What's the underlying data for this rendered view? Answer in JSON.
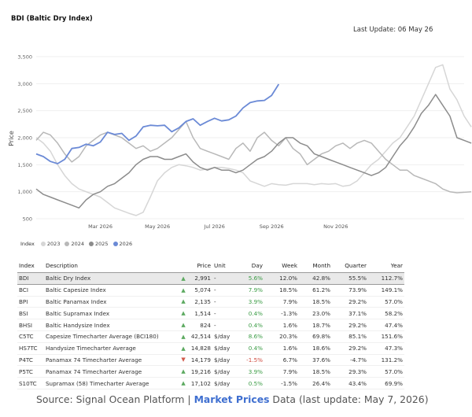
{
  "header": {
    "title": "BDI (Baltic Dry Index)",
    "last_update": "Last Update: 06 May 26"
  },
  "chart_data": {
    "type": "line",
    "ylabel": "Price",
    "ylim": [
      500,
      3500
    ],
    "y_ticks": [
      "500",
      "1,000",
      "1,500",
      "2,000",
      "2,500",
      "3,000",
      "3,500"
    ],
    "x_ticks": [
      "Mar 2026",
      "May 2026",
      "Jul 2026",
      "Sep 2026",
      "Nov 2026"
    ],
    "grid": true,
    "legend": {
      "title": "Index",
      "position": "bottom-left"
    },
    "series": [
      {
        "name": "2023",
        "color": "#d6d6d6",
        "values": [
          2000,
          1900,
          1750,
          1500,
          1300,
          1150,
          1050,
          1000,
          950,
          900,
          800,
          700,
          650,
          600,
          560,
          620,
          900,
          1200,
          1350,
          1450,
          1500,
          1480,
          1450,
          1400,
          1420,
          1450,
          1450,
          1430,
          1400,
          1350,
          1200,
          1150,
          1100,
          1150,
          1130,
          1120,
          1150,
          1150,
          1150,
          1130,
          1150,
          1140,
          1150,
          1100,
          1120,
          1200,
          1350,
          1500,
          1600,
          1750,
          1900,
          2000,
          2200,
          2400,
          2700,
          3000,
          3300,
          3350,
          2900,
          2700,
          2400,
          2200
        ]
      },
      {
        "name": "2024",
        "color": "#b8b8b8",
        "values": [
          1950,
          2100,
          2050,
          1900,
          1700,
          1550,
          1650,
          1850,
          1950,
          2050,
          2100,
          2050,
          2000,
          1900,
          1800,
          1850,
          1750,
          1800,
          1900,
          2000,
          2150,
          2300,
          2000,
          1800,
          1750,
          1700,
          1650,
          1600,
          1800,
          1900,
          1750,
          2000,
          2100,
          1950,
          1850,
          2000,
          1800,
          1700,
          1500,
          1600,
          1700,
          1750,
          1850,
          1900,
          1800,
          1900,
          1950,
          1900,
          1750,
          1600,
          1500,
          1400,
          1400,
          1300,
          1250,
          1200,
          1150,
          1050,
          1000,
          980,
          990,
          1000
        ]
      },
      {
        "name": "2025",
        "color": "#8c8c8c",
        "values": [
          1050,
          950,
          900,
          850,
          800,
          750,
          700,
          850,
          950,
          1000,
          1100,
          1150,
          1250,
          1350,
          1500,
          1600,
          1650,
          1650,
          1600,
          1600,
          1650,
          1700,
          1550,
          1450,
          1400,
          1450,
          1400,
          1400,
          1350,
          1400,
          1500,
          1600,
          1650,
          1750,
          1900,
          2000,
          2000,
          1900,
          1850,
          1700,
          1650,
          1600,
          1550,
          1500,
          1450,
          1400,
          1350,
          1300,
          1350,
          1450,
          1650,
          1850,
          2000,
          2200,
          2450,
          2600,
          2800,
          2600,
          2400,
          2000,
          1950,
          1900
        ]
      },
      {
        "name": "2026",
        "color": "#6b8ad6",
        "values": [
          1700,
          1650,
          1560,
          1520,
          1600,
          1800,
          1820,
          1880,
          1850,
          1920,
          2100,
          2060,
          2080,
          1950,
          2030,
          2200,
          2230,
          2220,
          2230,
          2110,
          2180,
          2300,
          2350,
          2230,
          2300,
          2360,
          2310,
          2330,
          2400,
          2550,
          2650,
          2680,
          2690,
          2780,
          2990
        ]
      }
    ]
  },
  "table": {
    "headers": [
      "Index",
      "Description",
      "Price",
      "Unit",
      "Day",
      "Week",
      "Month",
      "Quarter",
      "Year"
    ],
    "rows": [
      {
        "index": "BDI",
        "description": "Baltic Dry Index",
        "dir": "up",
        "price": "2,991",
        "unit": "-",
        "day": "5.6%",
        "week": "12.0%",
        "month": "42.8%",
        "quarter": "55.5%",
        "year": "112.7%"
      },
      {
        "index": "BCI",
        "description": "Baltic Capesize Index",
        "dir": "up",
        "price": "5,074",
        "unit": "-",
        "day": "7.9%",
        "week": "18.5%",
        "month": "61.2%",
        "quarter": "73.9%",
        "year": "149.1%"
      },
      {
        "index": "BPI",
        "description": "Baltic Panamax Index",
        "dir": "up",
        "price": "2,135",
        "unit": "-",
        "day": "3.9%",
        "week": "7.9%",
        "month": "18.5%",
        "quarter": "29.2%",
        "year": "57.0%"
      },
      {
        "index": "BSI",
        "description": "Baltic Supramax Index",
        "dir": "up",
        "price": "1,514",
        "unit": "-",
        "day": "0.4%",
        "week": "-1.3%",
        "month": "23.0%",
        "quarter": "37.1%",
        "year": "58.2%"
      },
      {
        "index": "BHSI",
        "description": "Baltic Handysize Index",
        "dir": "up",
        "price": "824",
        "unit": "-",
        "day": "0.4%",
        "week": "1.6%",
        "month": "18.7%",
        "quarter": "29.2%",
        "year": "47.4%"
      },
      {
        "index": "C5TC",
        "description": "Capesize Timecharter Average (BCI180)",
        "dir": "up",
        "price": "42,514",
        "unit": "$/day",
        "day": "8.6%",
        "week": "20.3%",
        "month": "69.8%",
        "quarter": "85.1%",
        "year": "151.6%"
      },
      {
        "index": "HS7TC",
        "description": "Handysize Timecharter Average",
        "dir": "up",
        "price": "14,828",
        "unit": "$/day",
        "day": "0.4%",
        "week": "1.6%",
        "month": "18.6%",
        "quarter": "29.2%",
        "year": "47.3%"
      },
      {
        "index": "P4TC",
        "description": "Panamax 74 Timecharter Average",
        "dir": "down",
        "price": "14,179",
        "unit": "$/day",
        "day": "-1.5%",
        "week": "6.7%",
        "month": "37.6%",
        "quarter": "-4.7%",
        "year": "131.2%"
      },
      {
        "index": "P5TC",
        "description": "Panamax 74 Timecharter Average",
        "dir": "up",
        "price": "19,216",
        "unit": "$/day",
        "day": "3.9%",
        "week": "7.9%",
        "month": "18.5%",
        "quarter": "29.3%",
        "year": "57.0%"
      },
      {
        "index": "S10TC",
        "description": "Supramax (58) Timecharter Average",
        "dir": "up",
        "price": "17,102",
        "unit": "$/day",
        "day": "0.5%",
        "week": "-1.5%",
        "month": "26.4%",
        "quarter": "43.4%",
        "year": "69.9%"
      }
    ]
  },
  "footer": {
    "prefix": "Source: Signal Ocean Platform | ",
    "link": "Market Prices",
    "suffix": " Data (last update: May 7, 2026)"
  }
}
